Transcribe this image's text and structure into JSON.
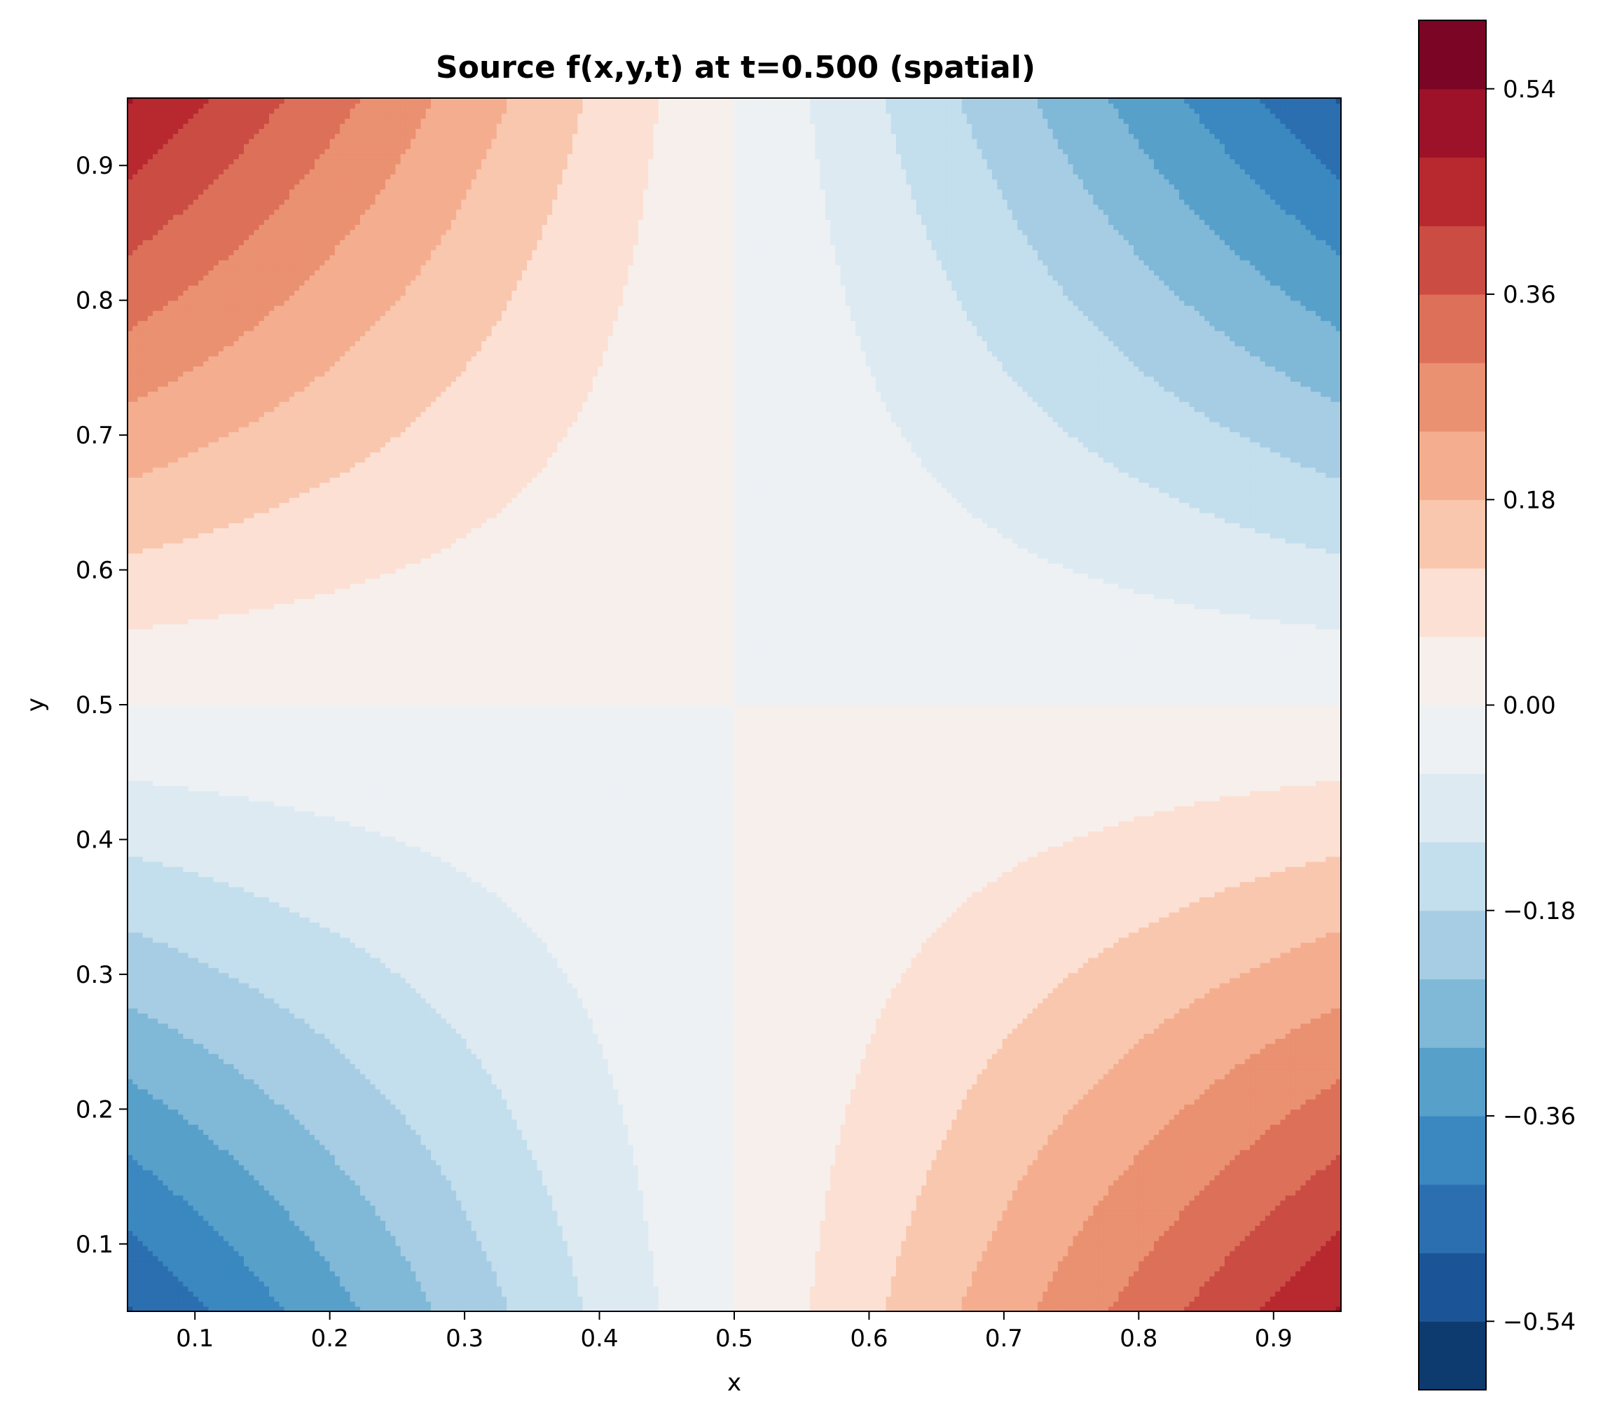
{
  "chart_data": {
    "type": "heatmap",
    "subtype": "filled-contour",
    "title": "Source f(x,y,t) at t=0.500 (spatial)",
    "xlabel": "x",
    "ylabel": "y",
    "xlim": [
      0.05,
      0.95
    ],
    "ylim": [
      0.05,
      0.95
    ],
    "x_ticks": [
      "0.1",
      "0.2",
      "0.3",
      "0.4",
      "0.5",
      "0.6",
      "0.7",
      "0.8",
      "0.9"
    ],
    "y_ticks": [
      "0.1",
      "0.2",
      "0.3",
      "0.4",
      "0.5",
      "0.6",
      "0.7",
      "0.8",
      "0.9"
    ],
    "x_tick_values": [
      0.1,
      0.2,
      0.3,
      0.4,
      0.5,
      0.6,
      0.7,
      0.8,
      0.9
    ],
    "y_tick_values": [
      0.1,
      0.2,
      0.3,
      0.4,
      0.5,
      0.6,
      0.7,
      0.8,
      0.9
    ],
    "grid_x": [
      0.05,
      0.15,
      0.25,
      0.35,
      0.45,
      0.55,
      0.65,
      0.75,
      0.85,
      0.95
    ],
    "grid_y": [
      0.05,
      0.15,
      0.25,
      0.35,
      0.45,
      0.55,
      0.65,
      0.75,
      0.85,
      0.95
    ],
    "function": "f(x,y) ≈ -2.4·(x-0.5)·(y-0.5)",
    "value_range": [
      -0.6,
      0.6
    ],
    "colormap": "RdBu_r",
    "levels": [
      -0.6,
      -0.54,
      -0.48,
      -0.42,
      -0.36,
      -0.3,
      -0.24,
      -0.18,
      -0.12,
      -0.06,
      0.0,
      0.06,
      0.12,
      0.18,
      0.24,
      0.3,
      0.36,
      0.42,
      0.48,
      0.54,
      0.6
    ],
    "level_colors": [
      "#0e3b6f",
      "#1b5597",
      "#2b6fb0",
      "#3b88c0",
      "#57a0ca",
      "#80b8d7",
      "#a6cde4",
      "#c3deec",
      "#ddeaf2",
      "#edf1f4",
      "#f7efec",
      "#fce0d3",
      "#f9c7ae",
      "#f4ae8f",
      "#ea9171",
      "#dd7059",
      "#ca4c43",
      "#b8282f",
      "#9d1228",
      "#7b0525"
    ],
    "colorbar_ticks": [
      "0.54",
      "0.36",
      "0.18",
      "0.00",
      "−0.18",
      "−0.36",
      "−0.54"
    ],
    "colorbar_tick_values": [
      0.54,
      0.36,
      0.18,
      0.0,
      -0.18,
      -0.36,
      -0.54
    ]
  }
}
